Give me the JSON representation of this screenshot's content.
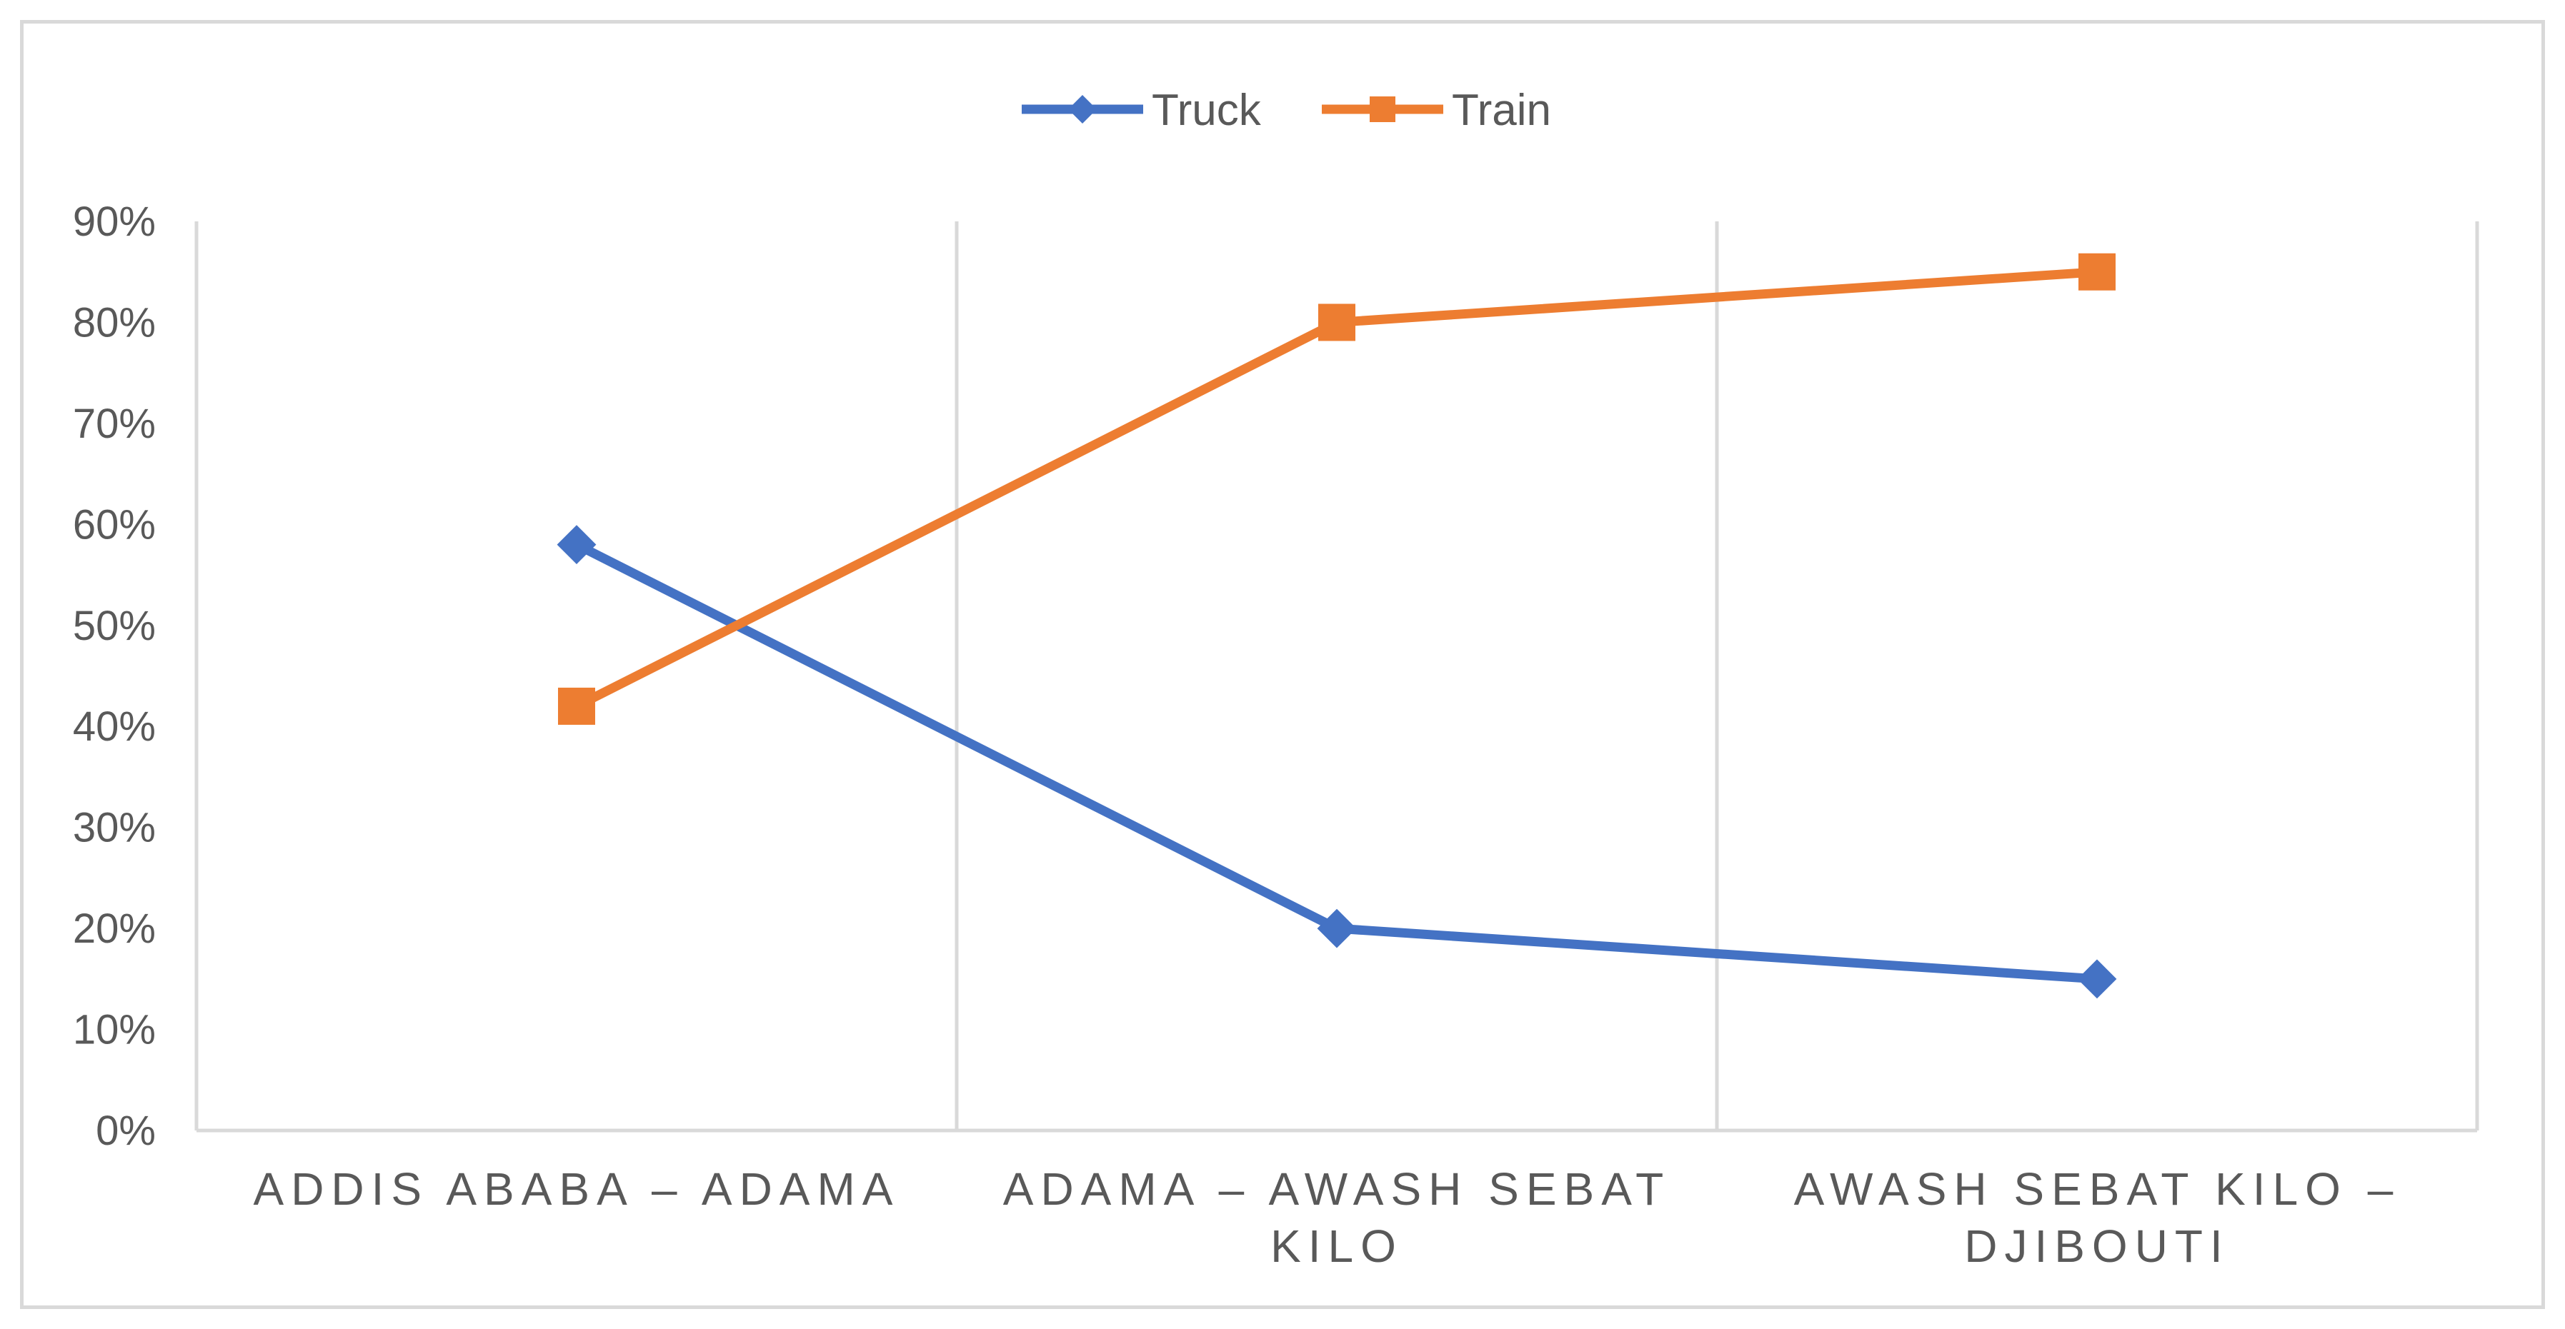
{
  "chart_data": {
    "type": "line",
    "title": "",
    "xlabel": "",
    "ylabel": "",
    "categories": [
      [
        "ADDIS ABABA – ADAMA"
      ],
      [
        "ADAMA – AWASH SEBAT",
        "KILO"
      ],
      [
        "AWASH SEBAT KILO –",
        "DJIBOUTI"
      ]
    ],
    "yticks": [
      "0%",
      "10%",
      "20%",
      "30%",
      "40%",
      "50%",
      "60%",
      "70%",
      "80%",
      "90%"
    ],
    "ylim": [
      0,
      90
    ],
    "grid": "vertical",
    "legend_position": "top",
    "series": [
      {
        "name": "Truck",
        "values": [
          58,
          20,
          15
        ],
        "color": "#4472c4",
        "marker": "diamond"
      },
      {
        "name": "Train",
        "values": [
          42,
          80,
          85
        ],
        "color": "#ed7d31",
        "marker": "square"
      }
    ],
    "colors": {
      "gridline": "#d9d9d9",
      "text": "#595959",
      "border": "#d9d9d9"
    }
  }
}
